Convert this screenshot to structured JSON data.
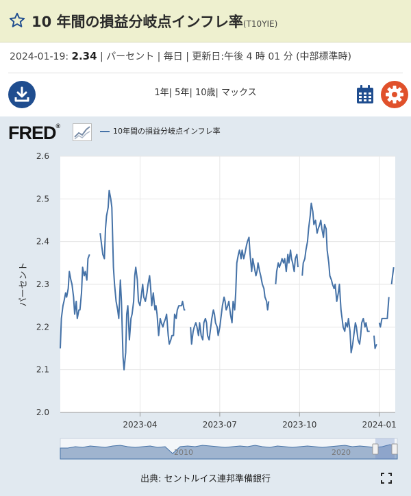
{
  "header": {
    "title": "10 年間の損益分岐点インフレ率",
    "series_id": "(T10YIE)"
  },
  "info": {
    "date": "2024-01-19:",
    "value": "2.34",
    "units": "| パーセント | 毎日 | 更新日:午後 4 時 01 分 (中部標準時)"
  },
  "toolbar": {
    "ranges": [
      "1年",
      "| 5年",
      "| 10歳",
      "| マックス"
    ]
  },
  "chart_header": {
    "logo_text": "FRED",
    "logo_mark": "®",
    "legend_label": "10年間の損益分岐点インフレ率"
  },
  "footer": {
    "source": "出典: セントルイス連邦準備銀行"
  },
  "colors": {
    "series": "#4572a7",
    "download_button": "#1f4d8f",
    "settings_button": "#e0512b",
    "title_bar": "#eef0cf",
    "chart_background": "#e1e9f0"
  },
  "chart_data": {
    "type": "line",
    "title": "10年間の損益分岐点インフレ率",
    "ylabel": "パーセント",
    "xlabel": "",
    "ylim": [
      2.0,
      2.6
    ],
    "yticks": [
      2.0,
      2.1,
      2.2,
      2.3,
      2.4,
      2.5,
      2.6
    ],
    "xlim_months": [
      0,
      12.6
    ],
    "xticks": [
      {
        "label": "2023-04",
        "month": 3
      },
      {
        "label": "2023-07",
        "month": 6
      },
      {
        "label": "2023-10",
        "month": 9
      },
      {
        "label": "2024-01",
        "month": 12
      }
    ],
    "grid": true,
    "series": [
      {
        "name": "10年間の損益分岐点インフレ率",
        "points": [
          [
            0.0,
            2.15
          ],
          [
            0.04,
            2.22
          ],
          [
            0.1,
            2.25
          ],
          [
            0.14,
            2.26
          ],
          [
            0.2,
            2.28
          ],
          [
            0.24,
            2.27
          ],
          [
            0.3,
            2.29
          ],
          [
            0.34,
            2.33
          ],
          [
            0.4,
            2.31
          ],
          [
            0.44,
            2.3
          ],
          [
            0.5,
            2.27
          ],
          [
            0.54,
            2.23
          ],
          [
            0.6,
            2.26
          ],
          [
            0.64,
            2.22
          ],
          [
            0.7,
            2.24
          ],
          [
            0.74,
            2.24
          ],
          [
            0.8,
            2.28
          ],
          [
            0.84,
            2.34
          ],
          [
            0.9,
            2.32
          ],
          [
            0.94,
            2.33
          ],
          [
            1.0,
            2.31
          ],
          [
            1.04,
            2.36
          ],
          [
            1.1,
            2.37
          ],
          null,
          [
            1.5,
            2.42
          ],
          [
            1.56,
            2.39
          ],
          [
            1.6,
            2.37
          ],
          [
            1.66,
            2.36
          ],
          [
            1.7,
            2.43
          ],
          [
            1.74,
            2.46
          ],
          [
            1.8,
            2.48
          ],
          [
            1.84,
            2.52
          ],
          [
            1.9,
            2.5
          ],
          [
            1.94,
            2.48
          ],
          [
            2.0,
            2.34
          ],
          [
            2.04,
            2.3
          ],
          [
            2.1,
            2.26
          ],
          [
            2.16,
            2.24
          ],
          [
            2.2,
            2.22
          ],
          [
            2.26,
            2.31
          ],
          [
            2.3,
            2.26
          ],
          [
            2.36,
            2.13
          ],
          [
            2.4,
            2.1
          ],
          [
            2.46,
            2.14
          ],
          [
            2.5,
            2.23
          ],
          [
            2.54,
            2.25
          ],
          [
            2.6,
            2.17
          ],
          [
            2.66,
            2.22
          ],
          [
            2.7,
            2.23
          ],
          [
            2.76,
            2.26
          ],
          [
            2.8,
            2.32
          ],
          [
            2.84,
            2.34
          ],
          [
            2.9,
            2.31
          ],
          [
            2.94,
            2.26
          ],
          [
            3.0,
            2.25
          ],
          [
            3.04,
            2.27
          ],
          [
            3.1,
            2.3
          ],
          [
            3.14,
            2.27
          ],
          [
            3.2,
            2.26
          ],
          [
            3.26,
            2.28
          ],
          [
            3.3,
            2.3
          ],
          [
            3.36,
            2.32
          ],
          [
            3.4,
            2.29
          ],
          [
            3.44,
            2.25
          ],
          [
            3.5,
            2.28
          ],
          [
            3.56,
            2.24
          ],
          [
            3.6,
            2.25
          ],
          [
            3.64,
            2.23
          ],
          [
            3.7,
            2.18
          ],
          [
            3.76,
            2.22
          ],
          [
            3.8,
            2.21
          ],
          [
            3.86,
            2.2
          ],
          [
            3.9,
            2.21
          ],
          [
            3.96,
            2.22
          ],
          [
            4.0,
            2.23
          ],
          [
            4.06,
            2.18
          ],
          [
            4.1,
            2.16
          ],
          [
            4.16,
            2.17
          ],
          [
            4.2,
            2.18
          ],
          [
            4.26,
            2.18
          ],
          [
            4.3,
            2.23
          ],
          [
            4.36,
            2.22
          ],
          [
            4.4,
            2.24
          ],
          [
            4.46,
            2.25
          ],
          [
            4.5,
            2.25
          ],
          [
            4.56,
            2.25
          ],
          [
            4.6,
            2.26
          ],
          [
            4.66,
            2.24
          ],
          [
            4.7,
            2.24
          ],
          null,
          [
            4.9,
            2.2
          ],
          [
            4.94,
            2.16
          ],
          [
            5.0,
            2.19
          ],
          [
            5.04,
            2.2
          ],
          [
            5.1,
            2.21
          ],
          [
            5.14,
            2.2
          ],
          [
            5.2,
            2.18
          ],
          [
            5.24,
            2.21
          ],
          [
            5.3,
            2.18
          ],
          [
            5.36,
            2.17
          ],
          [
            5.4,
            2.21
          ],
          [
            5.46,
            2.22
          ],
          [
            5.5,
            2.21
          ],
          [
            5.54,
            2.18
          ],
          [
            5.6,
            2.17
          ],
          [
            5.64,
            2.19
          ],
          [
            5.7,
            2.22
          ],
          [
            5.76,
            2.24
          ],
          [
            5.8,
            2.23
          ],
          [
            5.84,
            2.21
          ],
          [
            5.9,
            2.2
          ],
          [
            5.94,
            2.18
          ],
          [
            6.0,
            2.2
          ],
          [
            6.04,
            2.22
          ],
          [
            6.1,
            2.25
          ],
          [
            6.16,
            2.27
          ],
          [
            6.2,
            2.26
          ],
          [
            6.24,
            2.24
          ],
          [
            6.3,
            2.25
          ],
          [
            6.34,
            2.26
          ],
          [
            6.4,
            2.23
          ],
          [
            6.46,
            2.21
          ],
          [
            6.5,
            2.26
          ],
          [
            6.56,
            2.24
          ],
          [
            6.6,
            2.28
          ],
          [
            6.64,
            2.35
          ],
          [
            6.7,
            2.37
          ],
          [
            6.74,
            2.38
          ],
          [
            6.8,
            2.36
          ],
          [
            6.84,
            2.38
          ],
          [
            6.9,
            2.36
          ],
          [
            6.94,
            2.37
          ],
          [
            7.0,
            2.39
          ],
          [
            7.04,
            2.4
          ],
          [
            7.1,
            2.41
          ],
          [
            7.14,
            2.37
          ],
          [
            7.2,
            2.33
          ],
          [
            7.24,
            2.36
          ],
          [
            7.3,
            2.34
          ],
          [
            7.36,
            2.32
          ],
          [
            7.4,
            2.33
          ],
          [
            7.44,
            2.35
          ],
          [
            7.5,
            2.33
          ],
          [
            7.54,
            2.32
          ],
          [
            7.6,
            2.3
          ],
          [
            7.66,
            2.29
          ],
          [
            7.7,
            2.27
          ],
          [
            7.76,
            2.26
          ],
          [
            7.8,
            2.24
          ],
          [
            7.84,
            2.26
          ],
          null,
          [
            8.1,
            2.3
          ],
          [
            8.14,
            2.33
          ],
          [
            8.2,
            2.35
          ],
          [
            8.24,
            2.34
          ],
          [
            8.3,
            2.35
          ],
          [
            8.34,
            2.36
          ],
          [
            8.4,
            2.35
          ],
          [
            8.44,
            2.36
          ],
          [
            8.5,
            2.33
          ],
          [
            8.56,
            2.37
          ],
          [
            8.6,
            2.35
          ],
          [
            8.66,
            2.38
          ],
          [
            8.7,
            2.36
          ],
          [
            8.74,
            2.35
          ],
          [
            8.8,
            2.33
          ],
          [
            8.84,
            2.36
          ],
          [
            8.9,
            2.37
          ],
          [
            8.94,
            2.34
          ],
          null,
          [
            9.1,
            2.32
          ],
          [
            9.14,
            2.35
          ],
          [
            9.2,
            2.36
          ],
          [
            9.24,
            2.38
          ],
          [
            9.3,
            2.4
          ],
          [
            9.34,
            2.43
          ],
          [
            9.4,
            2.46
          ],
          [
            9.44,
            2.49
          ],
          [
            9.5,
            2.47
          ],
          [
            9.54,
            2.44
          ],
          [
            9.6,
            2.45
          ],
          [
            9.66,
            2.42
          ],
          [
            9.7,
            2.43
          ],
          [
            9.76,
            2.44
          ],
          [
            9.8,
            2.45
          ],
          [
            9.84,
            2.43
          ],
          [
            9.9,
            2.41
          ],
          [
            9.94,
            2.44
          ],
          [
            10.0,
            2.43
          ],
          [
            10.04,
            2.38
          ],
          [
            10.1,
            2.35
          ],
          [
            10.14,
            2.32
          ],
          [
            10.2,
            2.31
          ],
          [
            10.24,
            2.3
          ],
          [
            10.3,
            2.29
          ],
          [
            10.34,
            2.3
          ],
          [
            10.4,
            2.26
          ],
          [
            10.46,
            2.28
          ],
          [
            10.5,
            2.3
          ],
          [
            10.56,
            2.24
          ],
          [
            10.6,
            2.22
          ],
          [
            10.64,
            2.2
          ],
          [
            10.7,
            2.19
          ],
          [
            10.74,
            2.21
          ],
          [
            10.8,
            2.2
          ],
          [
            10.84,
            2.22
          ],
          [
            10.9,
            2.19
          ],
          [
            10.94,
            2.14
          ],
          [
            11.0,
            2.16
          ],
          [
            11.06,
            2.19
          ],
          [
            11.1,
            2.21
          ],
          [
            11.14,
            2.2
          ],
          [
            11.2,
            2.17
          ],
          [
            11.26,
            2.16
          ],
          [
            11.3,
            2.18
          ],
          [
            11.34,
            2.21
          ],
          [
            11.4,
            2.22
          ],
          [
            11.46,
            2.2
          ],
          [
            11.5,
            2.21
          ],
          [
            11.56,
            2.19
          ],
          [
            11.6,
            2.19
          ],
          [
            11.64,
            2.19
          ],
          null,
          [
            11.8,
            2.18
          ],
          [
            11.84,
            2.15
          ],
          [
            11.9,
            2.16
          ],
          null,
          [
            12.0,
            2.21
          ],
          [
            12.04,
            2.2
          ],
          [
            12.1,
            2.22
          ],
          [
            12.16,
            2.22
          ],
          [
            12.2,
            2.22
          ],
          [
            12.26,
            2.22
          ],
          [
            12.3,
            2.22
          ],
          [
            12.36,
            2.27
          ],
          null,
          [
            12.46,
            2.3
          ],
          [
            12.5,
            2.32
          ],
          [
            12.54,
            2.34
          ]
        ]
      }
    ],
    "navigator_labels": [
      "2010",
      "2020"
    ]
  }
}
